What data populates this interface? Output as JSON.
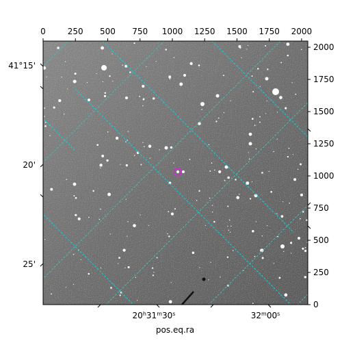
{
  "figure": {
    "xlabel_bottom": "pos.eq.ra",
    "top_pixel_ticks": [
      "0",
      "250",
      "500",
      "750",
      "1000",
      "1250",
      "1500",
      "1750",
      "2000"
    ],
    "right_pixel_ticks": [
      "0",
      "250",
      "500",
      "750",
      "1000",
      "1250",
      "1500",
      "1750",
      "2000"
    ],
    "dec_ticks": [
      "41°15'",
      "20'",
      "25'"
    ],
    "ra_ticks": [
      "20h31m30s",
      "32m00s"
    ],
    "grid_color": "#22cccc",
    "marker_color": "#dd22dd",
    "image_background": "#6e6e6e"
  }
}
